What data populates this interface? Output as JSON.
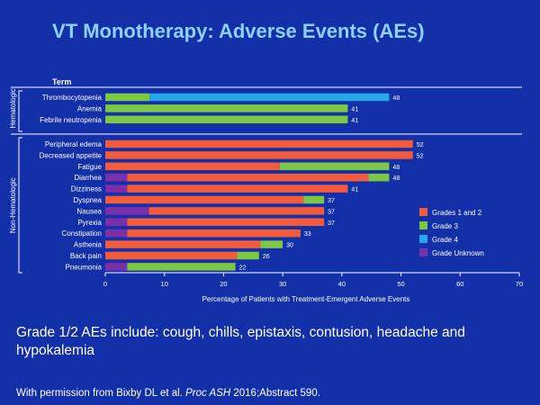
{
  "slide": {
    "title": "VT Monotherapy: Adverse Events (AEs)",
    "note": "Grade 1/2 AEs include: cough, chills, epistaxis, contusion, headache and hypokalemia",
    "credit_prefix": "With permission from Bixby DL et al. ",
    "credit_journal": "Proc ASH",
    "credit_suffix": " 2016;Abstract 590."
  },
  "chart_data": {
    "type": "bar",
    "orientation": "horizontal",
    "stacked": true,
    "column_header": "Term",
    "xlabel": "Percentage of Patients with Treatment-Emergent Adverse Events",
    "xlim": [
      0,
      70
    ],
    "xticks": [
      0,
      10,
      20,
      30,
      40,
      50,
      60,
      70
    ],
    "grid": false,
    "legend_position": "right",
    "colors": {
      "Grades 1 and 2": "#f45b3a",
      "Grade 3": "#7dc842",
      "Grade 4": "#26a6e8",
      "Grade Unknown": "#7b2fa8"
    },
    "legend": [
      "Grades 1 and 2",
      "Grade 3",
      "Grade 4",
      "Grade Unknown"
    ],
    "groups": [
      {
        "name": "Hematologic",
        "categories": [
          {
            "term": "Thrombocytopenia",
            "total": 48,
            "segments": [
              [
                "Grade 3",
                7.5
              ],
              [
                "Grade 4",
                40.5
              ]
            ]
          },
          {
            "term": "Anemia",
            "total": 41,
            "segments": [
              [
                "Grade 3",
                41
              ]
            ]
          },
          {
            "term": "Febrile neutropenia",
            "total": 41,
            "segments": [
              [
                "Grade 3",
                41
              ]
            ]
          }
        ]
      },
      {
        "name": "Non-Hematologic",
        "categories": [
          {
            "term": "Peripheral edema",
            "total": 52,
            "segments": [
              [
                "Grades 1 and 2",
                52
              ]
            ]
          },
          {
            "term": "Decreased appetite",
            "total": 52,
            "segments": [
              [
                "Grades 1 and 2",
                52
              ]
            ]
          },
          {
            "term": "Fatigue",
            "total": 48,
            "segments": [
              [
                "Grades 1 and 2",
                29.5
              ],
              [
                "Grade 3",
                18.5
              ]
            ]
          },
          {
            "term": "Diarrhea",
            "total": 48,
            "segments": [
              [
                "Grade Unknown",
                3.7
              ],
              [
                "Grades 1 and 2",
                40.8
              ],
              [
                "Grade 3",
                3.5
              ]
            ]
          },
          {
            "term": "Dizziness",
            "total": 41,
            "segments": [
              [
                "Grade Unknown",
                3.7
              ],
              [
                "Grades 1 and 2",
                37.3
              ]
            ]
          },
          {
            "term": "Dyspnea",
            "total": 37,
            "segments": [
              [
                "Grades 1 and 2",
                33.5
              ],
              [
                "Grade 3",
                3.5
              ]
            ]
          },
          {
            "term": "Nausea",
            "total": 37,
            "segments": [
              [
                "Grade Unknown",
                7.4
              ],
              [
                "Grades 1 and 2",
                29.6
              ]
            ]
          },
          {
            "term": "Pyrexia",
            "total": 37,
            "segments": [
              [
                "Grade Unknown",
                3.7
              ],
              [
                "Grades 1 and 2",
                33.3
              ]
            ]
          },
          {
            "term": "Constipation",
            "total": 33,
            "segments": [
              [
                "Grade Unknown",
                3.7
              ],
              [
                "Grades 1 and 2",
                29.3
              ]
            ]
          },
          {
            "term": "Asthenia",
            "total": 30,
            "segments": [
              [
                "Grades 1 and 2",
                26.2
              ],
              [
                "Grade 3",
                3.8
              ]
            ]
          },
          {
            "term": "Back pain",
            "total": 26,
            "segments": [
              [
                "Grades 1 and 2",
                22.3
              ],
              [
                "Grade 3",
                3.7
              ]
            ]
          },
          {
            "term": "Pneumonia",
            "total": 22,
            "segments": [
              [
                "Grade Unknown",
                3.7
              ],
              [
                "Grade 3",
                18.3
              ]
            ]
          }
        ]
      }
    ]
  }
}
